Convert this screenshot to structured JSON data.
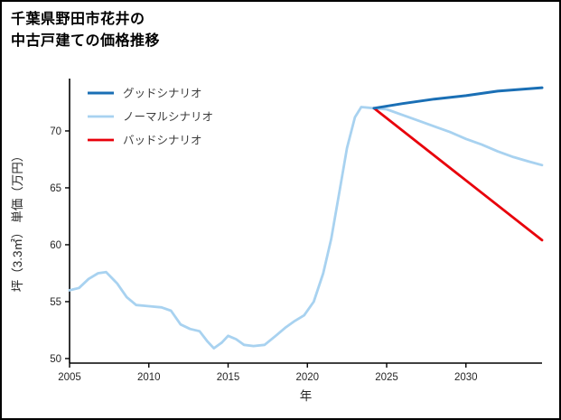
{
  "title_lines": [
    "千葉県野田市花井の",
    "中古戸建ての価格推移"
  ],
  "chart_data": {
    "type": "line",
    "title": "千葉県野田市花井の中古戸建ての価格推移",
    "xlabel": "年",
    "ylabel": "坪（3.3㎡） 単価（万円）",
    "xlim": [
      2005,
      2034.8
    ],
    "ylim": [
      49.6,
      74.6
    ],
    "x_ticks": [
      2005,
      2010,
      2015,
      2020,
      2025,
      2030
    ],
    "y_ticks": [
      50,
      55,
      60,
      65,
      70
    ],
    "grid": false,
    "legend_position": "upper-left",
    "axis_color": "#000000",
    "tick_label_color": "#262626",
    "legend_text_color": "#3c3c3c",
    "series": [
      {
        "name": "グッドシナリオ",
        "color": "#1a6fb5",
        "width": 3,
        "x": [
          2024.2,
          2026,
          2028,
          2030,
          2032,
          2034.8
        ],
        "y": [
          72.0,
          72.4,
          72.8,
          73.1,
          73.5,
          73.8
        ]
      },
      {
        "name": "ノーマルシナリオ",
        "color": "#a8d2f0",
        "width": 2.8,
        "x": [
          2005,
          2005.6,
          2006.2,
          2006.8,
          2007.3,
          2008,
          2008.6,
          2009.2,
          2010,
          2010.8,
          2011.4,
          2012,
          2012.6,
          2013.2,
          2013.7,
          2014.1,
          2014.6,
          2015,
          2015.5,
          2016,
          2016.6,
          2017.3,
          2018,
          2018.6,
          2019.2,
          2019.8,
          2020.4,
          2021,
          2021.5,
          2022,
          2022.5,
          2023,
          2023.4,
          2024.2,
          2025,
          2026,
          2027,
          2028,
          2029,
          2030,
          2031,
          2032,
          2033,
          2034,
          2034.8
        ],
        "y": [
          56.0,
          56.2,
          57.0,
          57.5,
          57.6,
          56.6,
          55.4,
          54.7,
          54.6,
          54.5,
          54.2,
          53.0,
          52.6,
          52.4,
          51.5,
          50.9,
          51.4,
          52.0,
          51.7,
          51.2,
          51.1,
          51.2,
          52.0,
          52.7,
          53.3,
          53.8,
          55.0,
          57.5,
          60.5,
          64.5,
          68.5,
          71.2,
          72.1,
          72.0,
          71.9,
          71.4,
          70.9,
          70.4,
          69.9,
          69.3,
          68.8,
          68.2,
          67.7,
          67.3,
          67.0
        ]
      },
      {
        "name": "バッドシナリオ",
        "color": "#e8000b",
        "width": 2.8,
        "x": [
          2024.2,
          2034.8
        ],
        "y": [
          72.0,
          60.4
        ]
      }
    ]
  }
}
